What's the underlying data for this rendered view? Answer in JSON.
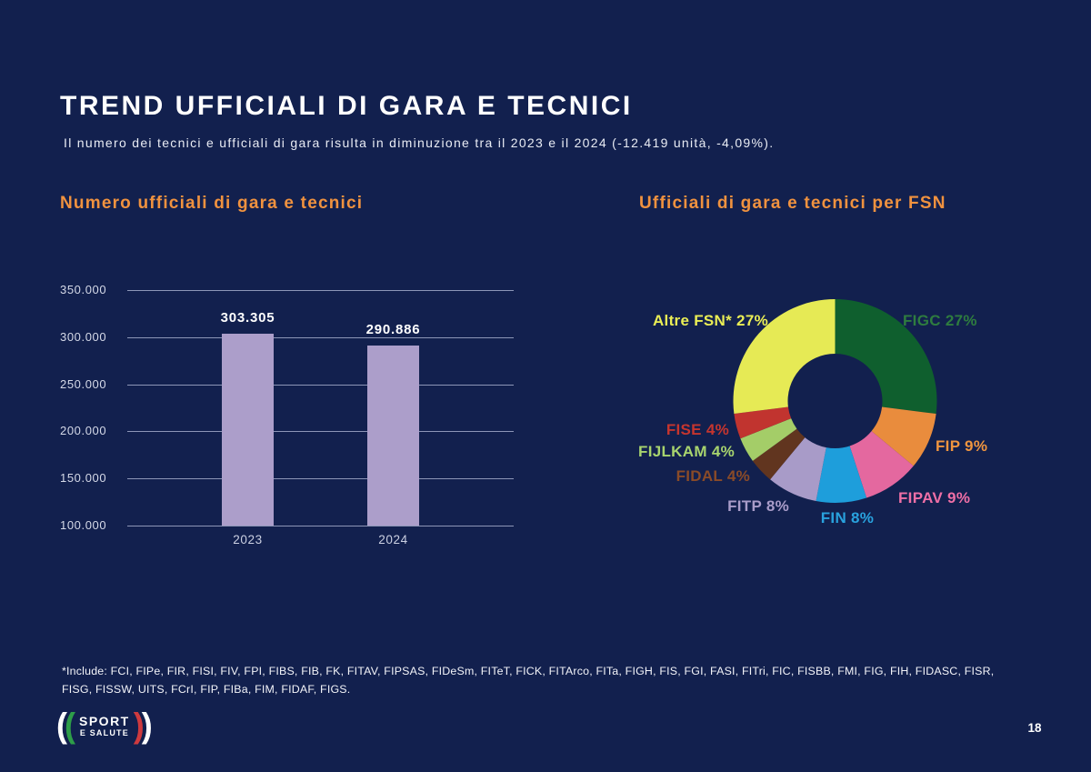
{
  "page": {
    "title": "TREND UFFICIALI DI GARA E TECNICI",
    "subtitle": "Il numero dei tecnici e ufficiali di gara risulta in diminuzione tra il 2023 e il 2024 (-12.419 unità, -4,09%).",
    "page_number": "18",
    "background_color": "#12204E",
    "accent_color": "#F0923F"
  },
  "footnote": {
    "lines": [
      "*Include: FCI, FIPe, FIR, FISI, FIV, FPI, FIBS, FIB, FK, FITAV, FIPSAS, FIDeSm, FITeT, FICK, FITArco, FITa, FIGH, FIS, FGI, FASI, FITri, FIC, FISBB, FMI, FIG, FIH, FIDASC, FISR,",
      "FISG, FISSW, UITS, FCrI, FIP, FIBa, FIM, FIDAF, FIGS."
    ]
  },
  "logo": {
    "line1": "SPORT",
    "line2": "E SALUTE",
    "green": "#2E9E49",
    "red": "#CE3A3E"
  },
  "chart_data": [
    {
      "type": "bar",
      "title": "Numero ufficiali di gara e tecnici",
      "categories": [
        "2023",
        "2024"
      ],
      "values": [
        303305,
        290886
      ],
      "value_labels": [
        "303.305",
        "290.886"
      ],
      "ylim": [
        100000,
        350000
      ],
      "ytick_interval": 50000,
      "ytick_labels": [
        "100.000",
        "150.000",
        "200.000",
        "250.000",
        "300.000",
        "350.000"
      ],
      "bar_color": "#AC9ECA",
      "grid": true,
      "xlabel": "",
      "ylabel": ""
    },
    {
      "type": "pie",
      "subtype": "donut",
      "title": "Ufficiali di gara e tecnici per FSN",
      "direction": "clockwise",
      "start_angle_deg": 0,
      "slices": [
        {
          "label": "FIGC",
          "pct": 27,
          "display": "FIGC 27%",
          "color": "#0F5F2E",
          "label_color": "#2E7C3F"
        },
        {
          "label": "FIP",
          "pct": 9,
          "display": "FIP 9%",
          "color": "#E98C3D",
          "label_color": "#F0953F"
        },
        {
          "label": "FIPAV",
          "pct": 9,
          "display": "FIPAV 9%",
          "color": "#E4689F",
          "label_color": "#EF6FA6"
        },
        {
          "label": "FIN",
          "pct": 8,
          "display": "FIN 8%",
          "color": "#1E9EDB",
          "label_color": "#29A2DE"
        },
        {
          "label": "FITP",
          "pct": 8,
          "display": "FITP 8%",
          "color": "#A89BC8",
          "label_color": "#A99CC9"
        },
        {
          "label": "FIDAL",
          "pct": 4,
          "display": "FIDAL 4%",
          "color": "#61351F",
          "label_color": "#8A4B28"
        },
        {
          "label": "FIJLKAM",
          "pct": 4,
          "display": "FIJLKAM 4%",
          "color": "#A4CD68",
          "label_color": "#A8D46E"
        },
        {
          "label": "FISE",
          "pct": 4,
          "display": "FISE 4%",
          "color": "#C1342F",
          "label_color": "#C5352E"
        },
        {
          "label": "Altre FSN*",
          "pct": 27,
          "display": "Altre FSN* 27%",
          "color": "#E6EA55",
          "label_color": "#EAEE55"
        }
      ]
    }
  ]
}
